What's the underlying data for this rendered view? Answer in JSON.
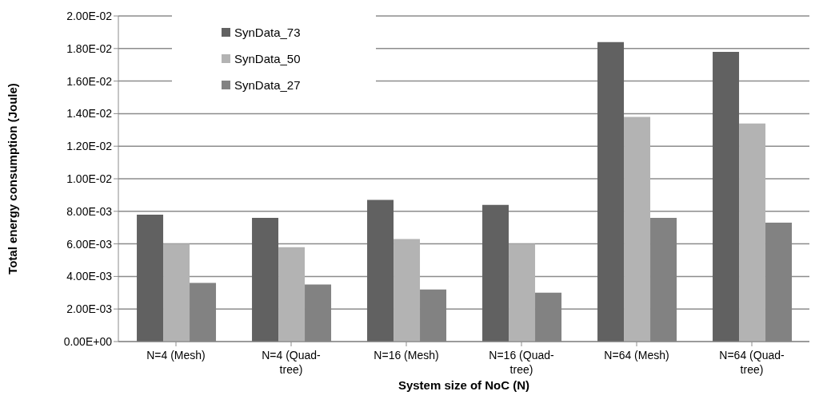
{
  "chart_data": {
    "type": "bar",
    "xlabel": "System size of NoC (N)",
    "ylabel": "Total energy consumption (Joule)",
    "categories": [
      "N=4 (Mesh)",
      "N=4 (Quad-tree)",
      "N=16 (Mesh)",
      "N=16 (Quad-tree)",
      "N=64 (Mesh)",
      "N=64 (Quad-tree)"
    ],
    "series": [
      {
        "name": "SynData_73",
        "color": "#616161",
        "values": [
          0.0078,
          0.0076,
          0.0087,
          0.0084,
          0.0184,
          0.0178
        ]
      },
      {
        "name": "SynData_50",
        "color": "#b3b3b3",
        "values": [
          0.006,
          0.0058,
          0.0063,
          0.006,
          0.0138,
          0.0134
        ]
      },
      {
        "name": "SynData_27",
        "color": "#828282",
        "values": [
          0.0036,
          0.0035,
          0.0032,
          0.003,
          0.0076,
          0.0073
        ]
      }
    ],
    "ylim": [
      0,
      0.02
    ],
    "yticks": [
      {
        "value": 0,
        "label": "0.00E+00"
      },
      {
        "value": 0.002,
        "label": "2.00E-03"
      },
      {
        "value": 0.004,
        "label": "4.00E-03"
      },
      {
        "value": 0.006,
        "label": "6.00E-03"
      },
      {
        "value": 0.008,
        "label": "8.00E-03"
      },
      {
        "value": 0.01,
        "label": "1.00E-02"
      },
      {
        "value": 0.012,
        "label": "1.20E-02"
      },
      {
        "value": 0.014,
        "label": "1.40E-02"
      },
      {
        "value": 0.016,
        "label": "1.60E-02"
      },
      {
        "value": 0.018,
        "label": "1.80E-02"
      },
      {
        "value": 0.02,
        "label": "2.00E-02"
      }
    ],
    "grid": "y",
    "legend": "top left"
  }
}
